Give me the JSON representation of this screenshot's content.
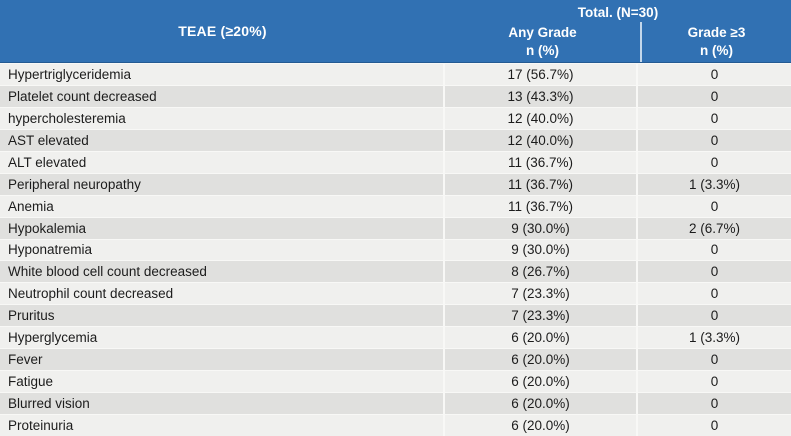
{
  "header": {
    "teae_label": "TEAE (≥20%)",
    "total_label": "Total. (N=30)",
    "any_grade_label": "Any Grade",
    "grade3_label": "Grade ≥3",
    "n_pct_label": "n (%)"
  },
  "colors": {
    "header_bg": "#3171b3",
    "header_text": "#ffffff",
    "row_light": "#f0f0ee",
    "row_dark": "#e0e0de",
    "body_text": "#1c1c1c",
    "header_divider": "#c3d7eb"
  },
  "table": {
    "rows": [
      {
        "name": "Hypertriglyceridemia",
        "any_grade": "17 (56.7%)",
        "grade3": "0"
      },
      {
        "name": "Platelet count decreased",
        "any_grade": "13 (43.3%)",
        "grade3": "0"
      },
      {
        "name": "hypercholesteremia",
        "any_grade": "12 (40.0%)",
        "grade3": "0"
      },
      {
        "name": "AST elevated",
        "any_grade": "12 (40.0%)",
        "grade3": "0"
      },
      {
        "name": "ALT elevated",
        "any_grade": "11 (36.7%)",
        "grade3": "0"
      },
      {
        "name": "Peripheral neuropathy",
        "any_grade": "11 (36.7%)",
        "grade3": "1 (3.3%)"
      },
      {
        "name": "Anemia",
        "any_grade": "11 (36.7%)",
        "grade3": "0"
      },
      {
        "name": "Hypokalemia",
        "any_grade": "9 (30.0%)",
        "grade3": "2 (6.7%)"
      },
      {
        "name": "Hyponatremia",
        "any_grade": "9 (30.0%)",
        "grade3": "0"
      },
      {
        "name": "White blood cell count decreased",
        "any_grade": "8 (26.7%)",
        "grade3": "0"
      },
      {
        "name": "Neutrophil count decreased",
        "any_grade": "7 (23.3%)",
        "grade3": "0"
      },
      {
        "name": "Pruritus",
        "any_grade": "7 (23.3%)",
        "grade3": "0"
      },
      {
        "name": "Hyperglycemia",
        "any_grade": "6 (20.0%)",
        "grade3": "1 (3.3%)"
      },
      {
        "name": "Fever",
        "any_grade": "6 (20.0%)",
        "grade3": "0"
      },
      {
        "name": "Fatigue",
        "any_grade": "6 (20.0%)",
        "grade3": "0"
      },
      {
        "name": "Blurred vision",
        "any_grade": "6 (20.0%)",
        "grade3": "0"
      },
      {
        "name": "Proteinuria",
        "any_grade": "6 (20.0%)",
        "grade3": "0"
      }
    ]
  }
}
